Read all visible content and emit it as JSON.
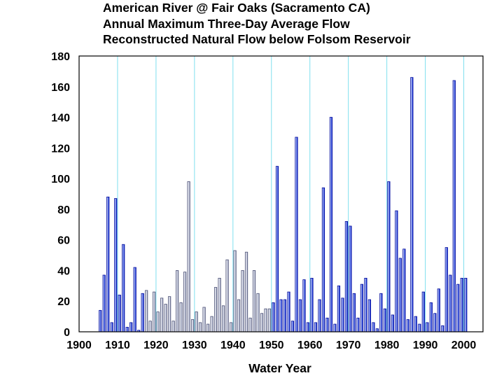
{
  "chart_data": {
    "type": "bar",
    "title_lines": [
      "American River  @  Fair Oaks  (Sacramento CA)",
      "Annual Maximum Three-Day Average Flow",
      "Reconstructed Natural Flow below Folsom Reservoir"
    ],
    "xlabel": "Water Year",
    "ylabel": "",
    "xlim": [
      1900,
      2005
    ],
    "ylim": [
      0,
      180
    ],
    "x_ticks": [
      1900,
      1910,
      1920,
      1930,
      1940,
      1950,
      1960,
      1970,
      1980,
      1990,
      2000
    ],
    "y_ticks": [
      0,
      20,
      40,
      60,
      80,
      100,
      120,
      140,
      160,
      180
    ],
    "grid": true,
    "series": [
      {
        "name": "Annual maximum three-day average flow",
        "x": [
          1905,
          1906,
          1907,
          1908,
          1909,
          1910,
          1911,
          1912,
          1913,
          1914,
          1915,
          1916,
          1917,
          1918,
          1919,
          1920,
          1921,
          1922,
          1923,
          1924,
          1925,
          1926,
          1927,
          1928,
          1929,
          1930,
          1931,
          1932,
          1933,
          1934,
          1935,
          1936,
          1937,
          1938,
          1939,
          1940,
          1941,
          1942,
          1943,
          1944,
          1945,
          1946,
          1947,
          1948,
          1949,
          1950,
          1951,
          1952,
          1953,
          1954,
          1955,
          1956,
          1957,
          1958,
          1959,
          1960,
          1961,
          1962,
          1963,
          1964,
          1965,
          1966,
          1967,
          1968,
          1969,
          1970,
          1971,
          1972,
          1973,
          1974,
          1975,
          1976,
          1977,
          1978,
          1979,
          1980,
          1981,
          1982,
          1983,
          1984,
          1985,
          1986,
          1987,
          1988,
          1989,
          1990,
          1991,
          1992,
          1993,
          1994,
          1995,
          1996,
          1997,
          1998,
          1999,
          2000
        ],
        "values": [
          14,
          37,
          88,
          6,
          87,
          24,
          57,
          3,
          6,
          42,
          1,
          25,
          27,
          7,
          26,
          13,
          22,
          18,
          23,
          7,
          40,
          19,
          39,
          98,
          8,
          13,
          6,
          16,
          5,
          10,
          29,
          35,
          17,
          47,
          6,
          53,
          21,
          40,
          52,
          9,
          40,
          25,
          12,
          15,
          15,
          19,
          108,
          21,
          21,
          26,
          7,
          127,
          21,
          34,
          6,
          35,
          6,
          21,
          94,
          9,
          140,
          5,
          30,
          22,
          72,
          69,
          25,
          9,
          31,
          35,
          21,
          6,
          2,
          25,
          15,
          98,
          11,
          79,
          48,
          54,
          8,
          166,
          10,
          5,
          26,
          6,
          19,
          12,
          28,
          4,
          55,
          37,
          164,
          31,
          35,
          35
        ]
      }
    ]
  }
}
